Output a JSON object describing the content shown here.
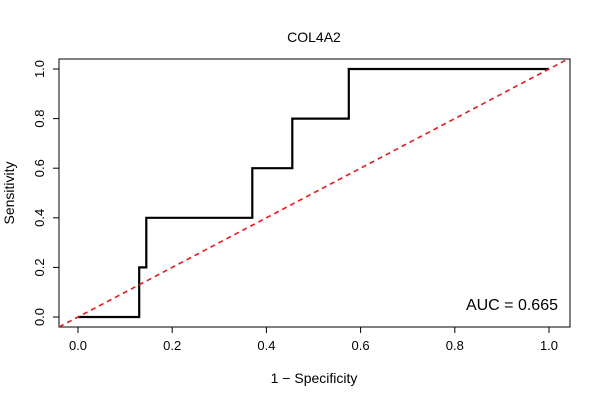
{
  "chart_data": {
    "type": "line",
    "title": "COL4A2",
    "xlabel": "1 − Specificity",
    "ylabel": "Sensitivity",
    "xlim": [
      0,
      1
    ],
    "ylim": [
      0,
      1
    ],
    "x_ticks": [
      "0.0",
      "0.2",
      "0.4",
      "0.6",
      "0.8",
      "1.0"
    ],
    "y_ticks": [
      "0.0",
      "0.2",
      "0.4",
      "0.6",
      "0.8",
      "1.0"
    ],
    "grid": false,
    "annotation": "AUC = 0.665",
    "series": [
      {
        "color": "#000000",
        "style": "solid",
        "x": [
          0.0,
          0.13,
          0.13,
          0.145,
          0.145,
          0.37,
          0.37,
          0.455,
          0.455,
          0.575,
          0.575,
          1.0
        ],
        "y": [
          0.0,
          0.0,
          0.2,
          0.2,
          0.4,
          0.4,
          0.6,
          0.6,
          0.8,
          0.8,
          1.0,
          1.0
        ]
      },
      {
        "color": "#e41a1c",
        "style": "dashed",
        "x": [
          -0.04,
          1.04
        ],
        "y": [
          -0.04,
          1.04
        ]
      }
    ]
  }
}
